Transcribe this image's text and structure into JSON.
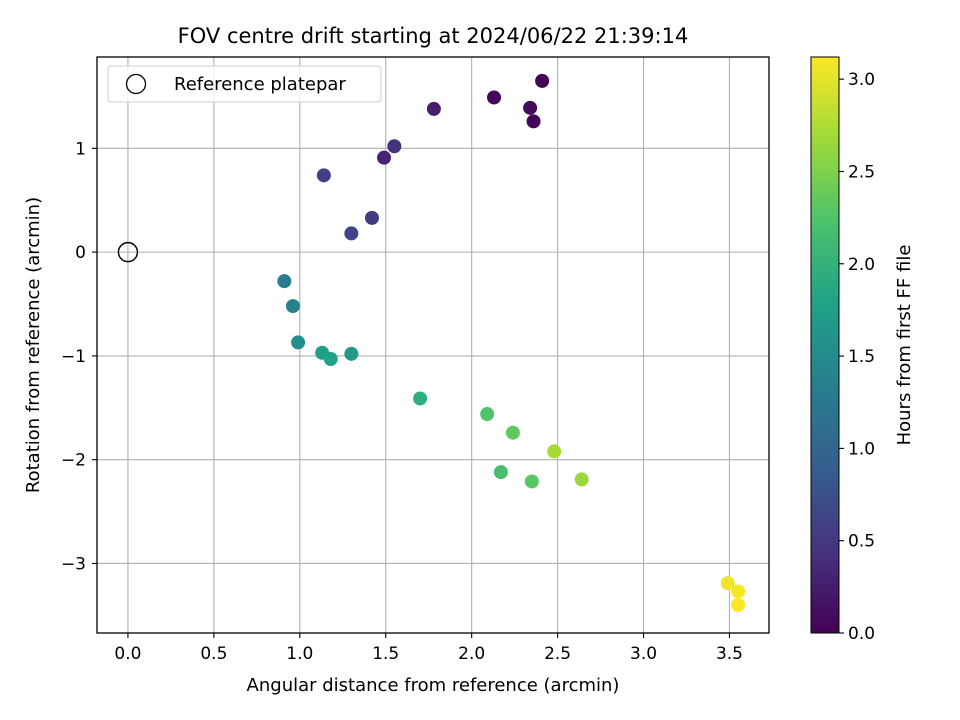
{
  "chart_data": {
    "type": "scatter",
    "title": "FOV centre drift starting at 2024/06/22 21:39:14",
    "xlabel": "Angular distance from reference (arcmin)",
    "ylabel": "Rotation from reference (arcmin)",
    "xlim": [
      -0.18,
      3.73
    ],
    "ylim": [
      -3.67,
      1.88
    ],
    "xticks": [
      0.0,
      0.5,
      1.0,
      1.5,
      2.0,
      2.5,
      3.0,
      3.5
    ],
    "xtick_labels": [
      "0.0",
      "0.5",
      "1.0",
      "1.5",
      "2.0",
      "2.5",
      "3.0",
      "3.5"
    ],
    "yticks": [
      -3,
      -2,
      -1,
      0,
      1
    ],
    "ytick_labels": [
      "−3",
      "−2",
      "−1",
      "0",
      "1"
    ],
    "grid": true,
    "legend": {
      "placement": "upper-left",
      "entries": [
        "Reference platepar"
      ]
    },
    "reference_point": {
      "label": "Reference platepar",
      "x": 0.0,
      "y": 0.0
    },
    "colorbar": {
      "label": "Hours from first FF file",
      "range": [
        0.0,
        3.12
      ],
      "ticks": [
        0.0,
        0.5,
        1.0,
        1.5,
        2.0,
        2.5,
        3.0
      ],
      "tick_labels": [
        "0.0",
        "0.5",
        "1.0",
        "1.5",
        "2.0",
        "2.5",
        "3.0"
      ],
      "colormap": "viridis"
    },
    "points": [
      {
        "x": 2.41,
        "y": 1.65,
        "hours": 0.0
      },
      {
        "x": 2.13,
        "y": 1.49,
        "hours": 0.05
      },
      {
        "x": 2.34,
        "y": 1.39,
        "hours": 0.08
      },
      {
        "x": 2.36,
        "y": 1.26,
        "hours": 0.03
      },
      {
        "x": 1.78,
        "y": 1.38,
        "hours": 0.25
      },
      {
        "x": 1.55,
        "y": 1.02,
        "hours": 0.45
      },
      {
        "x": 1.49,
        "y": 0.91,
        "hours": 0.3
      },
      {
        "x": 1.14,
        "y": 0.74,
        "hours": 0.6
      },
      {
        "x": 1.42,
        "y": 0.33,
        "hours": 0.55
      },
      {
        "x": 1.3,
        "y": 0.18,
        "hours": 0.65
      },
      {
        "x": 0.91,
        "y": -0.28,
        "hours": 1.3
      },
      {
        "x": 0.96,
        "y": -0.52,
        "hours": 1.4
      },
      {
        "x": 0.99,
        "y": -0.87,
        "hours": 1.55
      },
      {
        "x": 1.13,
        "y": -0.97,
        "hours": 1.75
      },
      {
        "x": 1.18,
        "y": -1.03,
        "hours": 1.8
      },
      {
        "x": 1.3,
        "y": -0.98,
        "hours": 1.7
      },
      {
        "x": 1.7,
        "y": -1.41,
        "hours": 1.95
      },
      {
        "x": 2.09,
        "y": -1.56,
        "hours": 2.25
      },
      {
        "x": 2.24,
        "y": -1.74,
        "hours": 2.35
      },
      {
        "x": 2.48,
        "y": -1.92,
        "hours": 2.7
      },
      {
        "x": 2.17,
        "y": -2.12,
        "hours": 2.2
      },
      {
        "x": 2.35,
        "y": -2.21,
        "hours": 2.3
      },
      {
        "x": 2.64,
        "y": -2.19,
        "hours": 2.65
      },
      {
        "x": 3.49,
        "y": -3.19,
        "hours": 3.05
      },
      {
        "x": 3.55,
        "y": -3.27,
        "hours": 3.08
      },
      {
        "x": 3.55,
        "y": -3.4,
        "hours": 3.12
      }
    ]
  }
}
